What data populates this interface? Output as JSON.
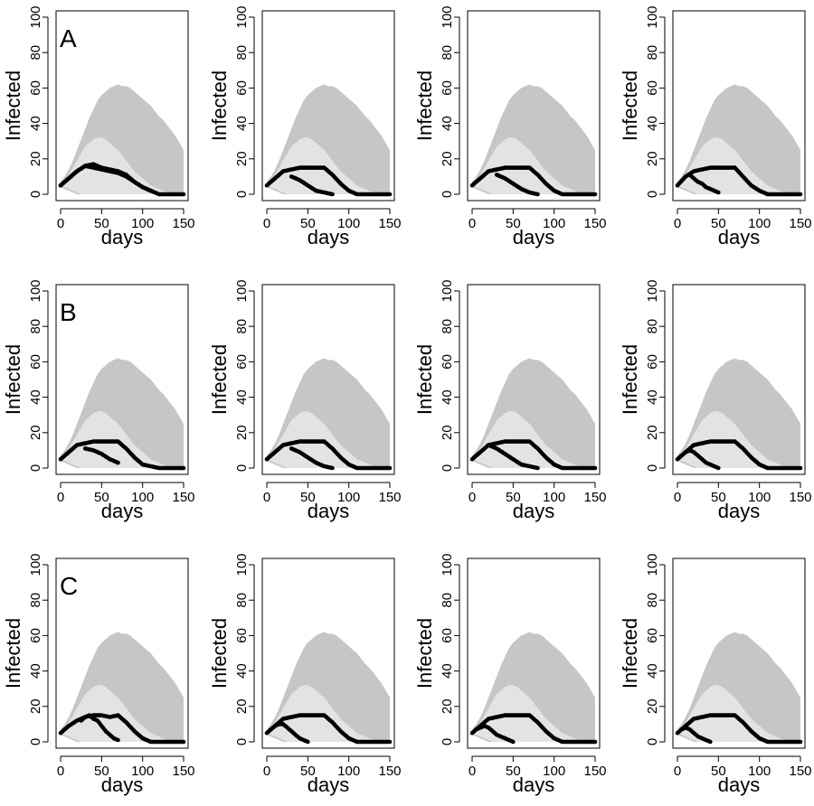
{
  "chart_data": {
    "type": "area",
    "layout": {
      "rows": 3,
      "cols": 4
    },
    "xlabel": "days",
    "ylabel": "Infected",
    "xlim": [
      0,
      150
    ],
    "ylim": [
      0,
      100
    ],
    "xticks": [
      0,
      50,
      100,
      150
    ],
    "yticks": [
      0,
      20,
      40,
      60,
      80,
      100
    ],
    "colors": {
      "outer_band": "#c6c6c6",
      "inner_band": "#e3e3e3",
      "points": "#000000"
    },
    "bands": {
      "outer": {
        "x": [
          0,
          5,
          10,
          15,
          20,
          25,
          30,
          35,
          40,
          45,
          50,
          55,
          60,
          65,
          70,
          75,
          80,
          85,
          90,
          95,
          100,
          105,
          110,
          115,
          120,
          125,
          130,
          135,
          140,
          145,
          150
        ],
        "upper": [
          7,
          10,
          14,
          19,
          25,
          31,
          37,
          43,
          48,
          53,
          56,
          58,
          60,
          61,
          62,
          61,
          61,
          60,
          58,
          56,
          54,
          52,
          50,
          47,
          44,
          42,
          39,
          36,
          33,
          29,
          25
        ],
        "lower": [
          4,
          3,
          2,
          1,
          0,
          0,
          0,
          0,
          0,
          0,
          0,
          0,
          0,
          0,
          0,
          0,
          0,
          0,
          0,
          0,
          0,
          0,
          0,
          0,
          0,
          0,
          0,
          0,
          0,
          0,
          0
        ]
      },
      "inner": {
        "x": [
          0,
          5,
          10,
          15,
          20,
          25,
          30,
          35,
          40,
          45,
          50,
          55,
          60,
          65,
          70,
          75,
          80,
          85,
          90,
          95,
          100,
          105,
          110,
          115,
          120,
          125,
          130,
          135,
          140,
          145,
          150
        ],
        "upper": [
          6,
          8,
          11,
          15,
          19,
          23,
          27,
          29,
          31,
          32,
          32,
          31,
          29,
          27,
          25,
          22,
          19,
          16,
          13,
          11,
          9,
          7,
          5,
          4,
          3,
          2,
          1,
          1,
          0,
          0,
          0
        ],
        "lower": [
          5,
          4,
          3,
          2,
          1,
          0,
          0,
          0,
          0,
          0,
          0,
          0,
          0,
          0,
          0,
          0,
          0,
          0,
          0,
          0,
          0,
          0,
          0,
          0,
          0,
          0,
          0,
          0,
          0,
          0,
          0
        ]
      }
    },
    "panels": [
      {
        "label": "A",
        "series": [
          {
            "x": [
              0,
              10,
              20,
              30,
              40,
              50,
              60,
              70,
              80,
              90,
              100,
              110,
              120,
              130,
              140,
              150
            ],
            "y": [
              5,
              9,
              13,
              16,
              17,
              15,
              14,
              13,
              11,
              7,
              4,
              2,
              0,
              0,
              0,
              0
            ]
          },
          {
            "x": [
              0,
              10,
              20,
              30,
              40,
              50,
              60,
              70,
              80,
              90,
              100,
              110
            ],
            "y": [
              5,
              9,
              13,
              16,
              15,
              14,
              13,
              12,
              10,
              7,
              4,
              2
            ]
          }
        ]
      },
      {
        "label": "",
        "series": [
          {
            "x": [
              0,
              10,
              20,
              30,
              40,
              50,
              60,
              70,
              80,
              90,
              100,
              110,
              120,
              130,
              140,
              150
            ],
            "y": [
              5,
              9,
              13,
              14,
              15,
              15,
              15,
              15,
              11,
              6,
              2,
              0,
              0,
              0,
              0,
              0
            ]
          },
          {
            "x": [
              30,
              40,
              50,
              60,
              70,
              80
            ],
            "y": [
              10,
              8,
              5,
              2,
              1,
              0
            ]
          }
        ]
      },
      {
        "label": "",
        "series": [
          {
            "x": [
              0,
              10,
              20,
              30,
              40,
              50,
              60,
              70,
              80,
              90,
              100,
              110,
              120,
              130,
              140,
              150
            ],
            "y": [
              5,
              9,
              13,
              14,
              15,
              15,
              15,
              15,
              11,
              6,
              2,
              0,
              0,
              0,
              0,
              0
            ]
          },
          {
            "x": [
              30,
              40,
              50,
              60,
              70,
              80
            ],
            "y": [
              11,
              9,
              6,
              3,
              1,
              0
            ]
          }
        ]
      },
      {
        "label": "",
        "series": [
          {
            "x": [
              0,
              10,
              20,
              30,
              40,
              50,
              60,
              70,
              80,
              90,
              100,
              110,
              120,
              130,
              140,
              150
            ],
            "y": [
              5,
              10,
              13,
              14,
              15,
              15,
              15,
              15,
              10,
              5,
              2,
              0,
              0,
              0,
              0,
              0
            ]
          },
          {
            "x": [
              15,
              20,
              25,
              30,
              35,
              40,
              45,
              50
            ],
            "y": [
              11,
              9,
              7,
              6,
              4,
              3,
              2,
              1
            ]
          }
        ]
      },
      {
        "label": "B",
        "series": [
          {
            "x": [
              0,
              10,
              20,
              30,
              40,
              50,
              60,
              70,
              80,
              90,
              100,
              110,
              120,
              130,
              140,
              150
            ],
            "y": [
              5,
              9,
              13,
              14,
              15,
              15,
              15,
              15,
              11,
              6,
              2,
              1,
              0,
              0,
              0,
              0
            ]
          },
          {
            "x": [
              30,
              40,
              50,
              60,
              70
            ],
            "y": [
              11,
              10,
              8,
              5,
              3
            ]
          }
        ]
      },
      {
        "label": "",
        "series": [
          {
            "x": [
              0,
              10,
              20,
              30,
              40,
              50,
              60,
              70,
              80,
              90,
              100,
              110,
              120,
              130,
              140,
              150
            ],
            "y": [
              5,
              9,
              13,
              14,
              15,
              15,
              15,
              15,
              11,
              6,
              2,
              0,
              0,
              0,
              0,
              0
            ]
          },
          {
            "x": [
              30,
              40,
              50,
              60,
              70,
              80
            ],
            "y": [
              11,
              9,
              6,
              3,
              1,
              0
            ]
          }
        ]
      },
      {
        "label": "",
        "series": [
          {
            "x": [
              0,
              10,
              20,
              30,
              40,
              50,
              60,
              70,
              80,
              90,
              100,
              110,
              120,
              130,
              140,
              150
            ],
            "y": [
              5,
              9,
              13,
              14,
              15,
              15,
              15,
              15,
              11,
              6,
              2,
              0,
              0,
              0,
              0,
              0
            ]
          },
          {
            "x": [
              20,
              30,
              40,
              50,
              60,
              70,
              80
            ],
            "y": [
              13,
              11,
              8,
              5,
              2,
              1,
              0
            ]
          }
        ]
      },
      {
        "label": "",
        "series": [
          {
            "x": [
              0,
              10,
              20,
              30,
              40,
              50,
              60,
              70,
              80,
              90,
              100,
              110,
              120,
              130,
              140,
              150
            ],
            "y": [
              5,
              9,
              13,
              14,
              15,
              15,
              15,
              15,
              11,
              6,
              2,
              0,
              0,
              0,
              0,
              0
            ]
          },
          {
            "x": [
              10,
              15,
              20,
              25,
              30,
              35,
              40,
              45,
              50
            ],
            "y": [
              9,
              10,
              9,
              7,
              5,
              3,
              2,
              1,
              0
            ]
          }
        ]
      },
      {
        "label": "C",
        "series": [
          {
            "x": [
              0,
              10,
              20,
              30,
              40,
              50,
              60,
              70,
              80,
              90,
              100,
              110,
              120,
              130,
              140,
              150
            ],
            "y": [
              5,
              9,
              12,
              14,
              15,
              15,
              14,
              15,
              11,
              6,
              2,
              0,
              0,
              0,
              0,
              0
            ]
          },
          {
            "x": [
              25,
              30,
              35,
              40,
              45,
              50,
              55,
              60,
              65,
              70
            ],
            "y": [
              12,
              14,
              15,
              13,
              12,
              9,
              6,
              4,
              2,
              1
            ]
          }
        ]
      },
      {
        "label": "",
        "series": [
          {
            "x": [
              0,
              10,
              20,
              30,
              40,
              50,
              60,
              70,
              80,
              90,
              100,
              110,
              120,
              130,
              140,
              150
            ],
            "y": [
              5,
              9,
              13,
              14,
              15,
              15,
              15,
              15,
              11,
              6,
              2,
              0,
              0,
              0,
              0,
              0
            ]
          },
          {
            "x": [
              10,
              15,
              20,
              25,
              30,
              35,
              40,
              45,
              50
            ],
            "y": [
              9,
              10,
              10,
              8,
              6,
              4,
              2,
              1,
              0
            ]
          }
        ]
      },
      {
        "label": "",
        "series": [
          {
            "x": [
              0,
              10,
              20,
              30,
              40,
              50,
              60,
              70,
              80,
              90,
              100,
              110,
              120,
              130,
              140,
              150
            ],
            "y": [
              5,
              9,
              13,
              14,
              15,
              15,
              15,
              15,
              11,
              6,
              2,
              0,
              0,
              0,
              0,
              0
            ]
          },
          {
            "x": [
              5,
              10,
              15,
              20,
              25,
              30,
              35,
              40,
              45,
              50
            ],
            "y": [
              7,
              8,
              9,
              8,
              6,
              4,
              3,
              2,
              1,
              0
            ]
          }
        ]
      },
      {
        "label": "",
        "series": [
          {
            "x": [
              0,
              10,
              20,
              30,
              40,
              50,
              60,
              70,
              80,
              90,
              100,
              110,
              120,
              130,
              140,
              150
            ],
            "y": [
              5,
              9,
              13,
              14,
              15,
              15,
              15,
              15,
              11,
              6,
              2,
              0,
              0,
              0,
              0,
              0
            ]
          },
          {
            "x": [
              5,
              10,
              15,
              20,
              25,
              30,
              35,
              40
            ],
            "y": [
              7,
              8,
              7,
              5,
              3,
              2,
              1,
              0
            ]
          }
        ]
      }
    ]
  }
}
